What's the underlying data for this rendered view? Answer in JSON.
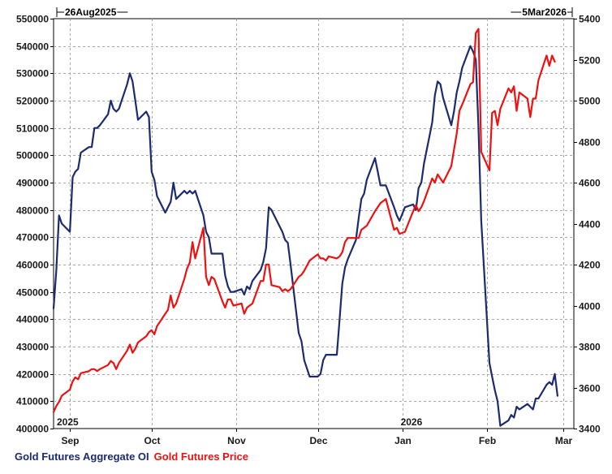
{
  "chart_data": {
    "type": "line",
    "header": {
      "start_label": "26Aug2025",
      "end_label": "5Mar2026"
    },
    "x_range": [
      "2025-08-26",
      "2026-03-05"
    ],
    "x_tick_labels": [
      {
        "label": "Sep",
        "date": "2025-09-01"
      },
      {
        "label": "Oct",
        "date": "2025-10-01"
      },
      {
        "label": "Nov",
        "date": "2025-11-01"
      },
      {
        "label": "Dec",
        "date": "2025-12-01"
      },
      {
        "label": "Jan",
        "date": "2026-01-01"
      },
      {
        "label": "Feb",
        "date": "2026-02-01"
      },
      {
        "label": "Mar",
        "date": "2026-03-01"
      }
    ],
    "year_labels": [
      {
        "label": "2025",
        "date": "2025-08-26"
      },
      {
        "label": "2026",
        "date": "2026-01-01"
      }
    ],
    "y_left": {
      "min": 400000,
      "max": 550000,
      "step": 10000
    },
    "y_right": {
      "min": 3400,
      "max": 5400,
      "step": 200
    },
    "grid": true,
    "legend_placement": "bottom-left",
    "series": [
      {
        "name": "Gold Futures Aggregate OI",
        "axis": "left",
        "color": "#1c2b6e",
        "points": [
          [
            "2025-08-26",
            444000
          ],
          [
            "2025-08-27",
            458000
          ],
          [
            "2025-08-28",
            478000
          ],
          [
            "2025-08-29",
            475000
          ],
          [
            "2025-09-01",
            472000
          ],
          [
            "2025-09-02",
            492000
          ],
          [
            "2025-09-03",
            494000
          ],
          [
            "2025-09-04",
            495000
          ],
          [
            "2025-09-05",
            501000
          ],
          [
            "2025-09-08",
            503000
          ],
          [
            "2025-09-09",
            503000
          ],
          [
            "2025-09-10",
            510000
          ],
          [
            "2025-09-11",
            510000
          ],
          [
            "2025-09-12",
            511000
          ],
          [
            "2025-09-15",
            515000
          ],
          [
            "2025-09-16",
            520000
          ],
          [
            "2025-09-17",
            517000
          ],
          [
            "2025-09-18",
            516000
          ],
          [
            "2025-09-19",
            517000
          ],
          [
            "2025-09-22",
            526000
          ],
          [
            "2025-09-23",
            530000
          ],
          [
            "2025-09-24",
            527000
          ],
          [
            "2025-09-25",
            520000
          ],
          [
            "2025-09-26",
            513000
          ],
          [
            "2025-09-29",
            516000
          ],
          [
            "2025-09-30",
            514000
          ],
          [
            "2025-10-01",
            494000
          ],
          [
            "2025-10-02",
            491000
          ],
          [
            "2025-10-03",
            485000
          ],
          [
            "2025-10-06",
            479000
          ],
          [
            "2025-10-07",
            481000
          ],
          [
            "2025-10-08",
            483000
          ],
          [
            "2025-10-09",
            490000
          ],
          [
            "2025-10-10",
            484000
          ],
          [
            "2025-10-13",
            487000
          ],
          [
            "2025-10-14",
            486000
          ],
          [
            "2025-10-15",
            487000
          ],
          [
            "2025-10-16",
            486000
          ],
          [
            "2025-10-17",
            487000
          ],
          [
            "2025-10-20",
            478000
          ],
          [
            "2025-10-21",
            472000
          ],
          [
            "2025-10-22",
            470000
          ],
          [
            "2025-10-23",
            464000
          ],
          [
            "2025-10-24",
            464000
          ],
          [
            "2025-10-27",
            464000
          ],
          [
            "2025-10-28",
            456000
          ],
          [
            "2025-10-29",
            452000
          ],
          [
            "2025-10-30",
            450000
          ],
          [
            "2025-10-31",
            450000
          ],
          [
            "2025-11-03",
            451000
          ],
          [
            "2025-11-04",
            449000
          ],
          [
            "2025-11-05",
            452000
          ],
          [
            "2025-11-06",
            451000
          ],
          [
            "2025-11-07",
            454000
          ],
          [
            "2025-11-10",
            458000
          ],
          [
            "2025-11-11",
            461000
          ],
          [
            "2025-11-12",
            466000
          ],
          [
            "2025-11-13",
            481000
          ],
          [
            "2025-11-14",
            480000
          ],
          [
            "2025-11-17",
            474000
          ],
          [
            "2025-11-18",
            472000
          ],
          [
            "2025-11-19",
            469000
          ],
          [
            "2025-11-20",
            468000
          ],
          [
            "2025-11-21",
            460000
          ],
          [
            "2025-11-24",
            435000
          ],
          [
            "2025-11-25",
            432000
          ],
          [
            "2025-11-26",
            425000
          ],
          [
            "2025-11-28",
            419000
          ],
          [
            "2025-12-01",
            419000
          ],
          [
            "2025-12-02",
            420000
          ],
          [
            "2025-12-03",
            425000
          ],
          [
            "2025-12-04",
            427000
          ],
          [
            "2025-12-05",
            427000
          ],
          [
            "2025-12-08",
            427000
          ],
          [
            "2025-12-09",
            440000
          ],
          [
            "2025-12-10",
            453000
          ],
          [
            "2025-12-11",
            459000
          ],
          [
            "2025-12-12",
            462000
          ],
          [
            "2025-12-15",
            469000
          ],
          [
            "2025-12-16",
            477000
          ],
          [
            "2025-12-17",
            484000
          ],
          [
            "2025-12-18",
            486000
          ],
          [
            "2025-12-19",
            491000
          ],
          [
            "2025-12-22",
            499000
          ],
          [
            "2025-12-23",
            494000
          ],
          [
            "2025-12-24",
            489000
          ],
          [
            "2025-12-26",
            489000
          ],
          [
            "2025-12-29",
            481000
          ],
          [
            "2025-12-30",
            478000
          ],
          [
            "2025-12-31",
            476000
          ],
          [
            "2026-01-02",
            481000
          ],
          [
            "2026-01-05",
            482000
          ],
          [
            "2026-01-06",
            480000
          ],
          [
            "2026-01-07",
            488000
          ],
          [
            "2026-01-08",
            490000
          ],
          [
            "2026-01-09",
            497000
          ],
          [
            "2026-01-12",
            512000
          ],
          [
            "2026-01-13",
            522000
          ],
          [
            "2026-01-14",
            527000
          ],
          [
            "2026-01-15",
            526000
          ],
          [
            "2026-01-16",
            521000
          ],
          [
            "2026-01-19",
            511000
          ],
          [
            "2026-01-20",
            516000
          ],
          [
            "2026-01-21",
            523000
          ],
          [
            "2026-01-22",
            527000
          ],
          [
            "2026-01-23",
            532000
          ],
          [
            "2026-01-26",
            540000
          ],
          [
            "2026-01-27",
            538000
          ],
          [
            "2026-01-28",
            535000
          ],
          [
            "2026-01-29",
            510000
          ],
          [
            "2026-01-30",
            476000
          ],
          [
            "2026-02-02",
            424000
          ],
          [
            "2026-02-03",
            419000
          ],
          [
            "2026-02-04",
            414000
          ],
          [
            "2026-02-05",
            410000
          ],
          [
            "2026-02-06",
            401000
          ],
          [
            "2026-02-09",
            403000
          ],
          [
            "2026-02-10",
            405000
          ],
          [
            "2026-02-11",
            404000
          ],
          [
            "2026-02-12",
            408000
          ],
          [
            "2026-02-13",
            407000
          ],
          [
            "2026-02-16",
            409000
          ],
          [
            "2026-02-17",
            408000
          ],
          [
            "2026-02-18",
            407000
          ],
          [
            "2026-02-19",
            411000
          ],
          [
            "2026-02-20",
            411000
          ],
          [
            "2026-02-23",
            416000
          ],
          [
            "2026-02-24",
            417000
          ],
          [
            "2026-02-25",
            416000
          ],
          [
            "2026-02-26",
            420000
          ],
          [
            "2026-02-27",
            412000
          ]
        ]
      },
      {
        "name": "Gold Futures Price",
        "axis": "right",
        "color": "#ee1111",
        "points": [
          [
            "2025-08-26",
            3480
          ],
          [
            "2025-08-27",
            3510
          ],
          [
            "2025-08-28",
            3530
          ],
          [
            "2025-08-29",
            3560
          ],
          [
            "2025-09-01",
            3590
          ],
          [
            "2025-09-02",
            3630
          ],
          [
            "2025-09-03",
            3650
          ],
          [
            "2025-09-04",
            3640
          ],
          [
            "2025-09-05",
            3670
          ],
          [
            "2025-09-08",
            3680
          ],
          [
            "2025-09-09",
            3690
          ],
          [
            "2025-09-10",
            3690
          ],
          [
            "2025-09-11",
            3680
          ],
          [
            "2025-09-12",
            3690
          ],
          [
            "2025-09-15",
            3710
          ],
          [
            "2025-09-16",
            3730
          ],
          [
            "2025-09-17",
            3720
          ],
          [
            "2025-09-18",
            3690
          ],
          [
            "2025-09-19",
            3720
          ],
          [
            "2025-09-22",
            3780
          ],
          [
            "2025-09-23",
            3810
          ],
          [
            "2025-09-24",
            3770
          ],
          [
            "2025-09-25",
            3790
          ],
          [
            "2025-09-26",
            3820
          ],
          [
            "2025-09-29",
            3850
          ],
          [
            "2025-09-30",
            3870
          ],
          [
            "2025-10-01",
            3880
          ],
          [
            "2025-10-02",
            3860
          ],
          [
            "2025-10-03",
            3900
          ],
          [
            "2025-10-06",
            3960
          ],
          [
            "2025-10-07",
            3980
          ],
          [
            "2025-10-08",
            4050
          ],
          [
            "2025-10-09",
            3990
          ],
          [
            "2025-10-10",
            4010
          ],
          [
            "2025-10-13",
            4130
          ],
          [
            "2025-10-14",
            4180
          ],
          [
            "2025-10-15",
            4210
          ],
          [
            "2025-10-16",
            4310
          ],
          [
            "2025-10-17",
            4230
          ],
          [
            "2025-10-20",
            4380
          ],
          [
            "2025-10-21",
            4140
          ],
          [
            "2025-10-22",
            4100
          ],
          [
            "2025-10-23",
            4140
          ],
          [
            "2025-10-24",
            4130
          ],
          [
            "2025-10-27",
            4020
          ],
          [
            "2025-10-28",
            3990
          ],
          [
            "2025-10-29",
            4030
          ],
          [
            "2025-10-30",
            4030
          ],
          [
            "2025-10-31",
            4000
          ],
          [
            "2025-11-03",
            4010
          ],
          [
            "2025-11-04",
            3960
          ],
          [
            "2025-11-05",
            3990
          ],
          [
            "2025-11-06",
            4000
          ],
          [
            "2025-11-07",
            4010
          ],
          [
            "2025-11-10",
            4120
          ],
          [
            "2025-11-11",
            4120
          ],
          [
            "2025-11-12",
            4200
          ],
          [
            "2025-11-13",
            4200
          ],
          [
            "2025-11-14",
            4100
          ],
          [
            "2025-11-17",
            4090
          ],
          [
            "2025-11-18",
            4070
          ],
          [
            "2025-11-19",
            4080
          ],
          [
            "2025-11-20",
            4070
          ],
          [
            "2025-11-21",
            4080
          ],
          [
            "2025-11-24",
            4140
          ],
          [
            "2025-11-25",
            4150
          ],
          [
            "2025-11-26",
            4170
          ],
          [
            "2025-11-28",
            4220
          ],
          [
            "2025-12-01",
            4250
          ],
          [
            "2025-12-02",
            4230
          ],
          [
            "2025-12-03",
            4230
          ],
          [
            "2025-12-04",
            4220
          ],
          [
            "2025-12-05",
            4240
          ],
          [
            "2025-12-08",
            4230
          ],
          [
            "2025-12-09",
            4240
          ],
          [
            "2025-12-10",
            4260
          ],
          [
            "2025-12-11",
            4310
          ],
          [
            "2025-12-12",
            4330
          ],
          [
            "2025-12-15",
            4330
          ],
          [
            "2025-12-16",
            4330
          ],
          [
            "2025-12-17",
            4370
          ],
          [
            "2025-12-18",
            4380
          ],
          [
            "2025-12-19",
            4390
          ],
          [
            "2025-12-22",
            4460
          ],
          [
            "2025-12-23",
            4480
          ],
          [
            "2025-12-24",
            4500
          ],
          [
            "2025-12-26",
            4520
          ],
          [
            "2025-12-29",
            4370
          ],
          [
            "2025-12-30",
            4380
          ],
          [
            "2025-12-31",
            4350
          ],
          [
            "2026-01-02",
            4360
          ],
          [
            "2026-01-05",
            4460
          ],
          [
            "2026-01-06",
            4490
          ],
          [
            "2026-01-07",
            4460
          ],
          [
            "2026-01-08",
            4480
          ],
          [
            "2026-01-09",
            4510
          ],
          [
            "2026-01-12",
            4620
          ],
          [
            "2026-01-13",
            4600
          ],
          [
            "2026-01-14",
            4640
          ],
          [
            "2026-01-15",
            4620
          ],
          [
            "2026-01-16",
            4600
          ],
          [
            "2026-01-19",
            4680
          ],
          [
            "2026-01-20",
            4760
          ],
          [
            "2026-01-21",
            4840
          ],
          [
            "2026-01-22",
            4950
          ],
          [
            "2026-01-23",
            4980
          ],
          [
            "2026-01-26",
            5080
          ],
          [
            "2026-01-27",
            5090
          ],
          [
            "2026-01-28",
            5330
          ],
          [
            "2026-01-29",
            5350
          ],
          [
            "2026-01-30",
            4750
          ],
          [
            "2026-02-02",
            4660
          ],
          [
            "2026-02-03",
            4940
          ],
          [
            "2026-02-04",
            4950
          ],
          [
            "2026-02-05",
            4880
          ],
          [
            "2026-02-06",
            4960
          ],
          [
            "2026-02-09",
            5060
          ],
          [
            "2026-02-10",
            5040
          ],
          [
            "2026-02-11",
            5070
          ],
          [
            "2026-02-12",
            4950
          ],
          [
            "2026-02-13",
            5040
          ],
          [
            "2026-02-16",
            5010
          ],
          [
            "2026-02-17",
            4920
          ],
          [
            "2026-02-18",
            5010
          ],
          [
            "2026-02-19",
            5010
          ],
          [
            "2026-02-20",
            5100
          ],
          [
            "2026-02-23",
            5220
          ],
          [
            "2026-02-24",
            5170
          ],
          [
            "2026-02-25",
            5220
          ],
          [
            "2026-02-26",
            5190
          ]
        ]
      }
    ]
  }
}
